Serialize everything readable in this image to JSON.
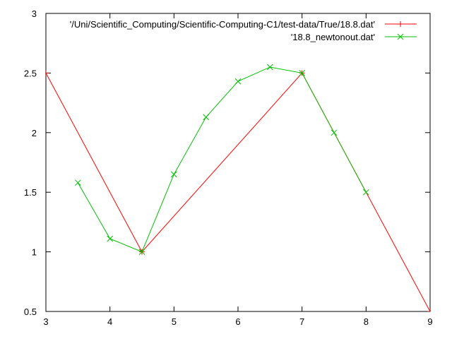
{
  "chart_data": {
    "type": "line",
    "title": "",
    "xlabel": "",
    "ylabel": "",
    "xlim": [
      3,
      9
    ],
    "ylim": [
      0.5,
      3
    ],
    "xticks": [
      "3",
      "4",
      "5",
      "6",
      "7",
      "8",
      "9"
    ],
    "yticks": [
      "0.5",
      "1",
      "1.5",
      "2",
      "2.5",
      "3"
    ],
    "grid": false,
    "legend_position": "top-right",
    "series": [
      {
        "name": "'/Uni/Scientific_Computing/Scientific-Computing-C1/test-data/True/18.8.dat'",
        "color": "#ff0000",
        "marker": "plus",
        "x": [
          3,
          4.5,
          7,
          9
        ],
        "y": [
          2.5,
          1.0,
          2.5,
          0.5
        ]
      },
      {
        "name": "'18.8_newtonout.dat'",
        "color": "#00c000",
        "marker": "cross",
        "x": [
          3.5,
          4.0,
          4.5,
          5.0,
          5.5,
          6.0,
          6.5,
          7.0,
          7.5,
          8.0
        ],
        "y": [
          1.58,
          1.11,
          1.0,
          1.65,
          2.13,
          2.43,
          2.55,
          2.5,
          2.0,
          1.5
        ]
      }
    ]
  }
}
